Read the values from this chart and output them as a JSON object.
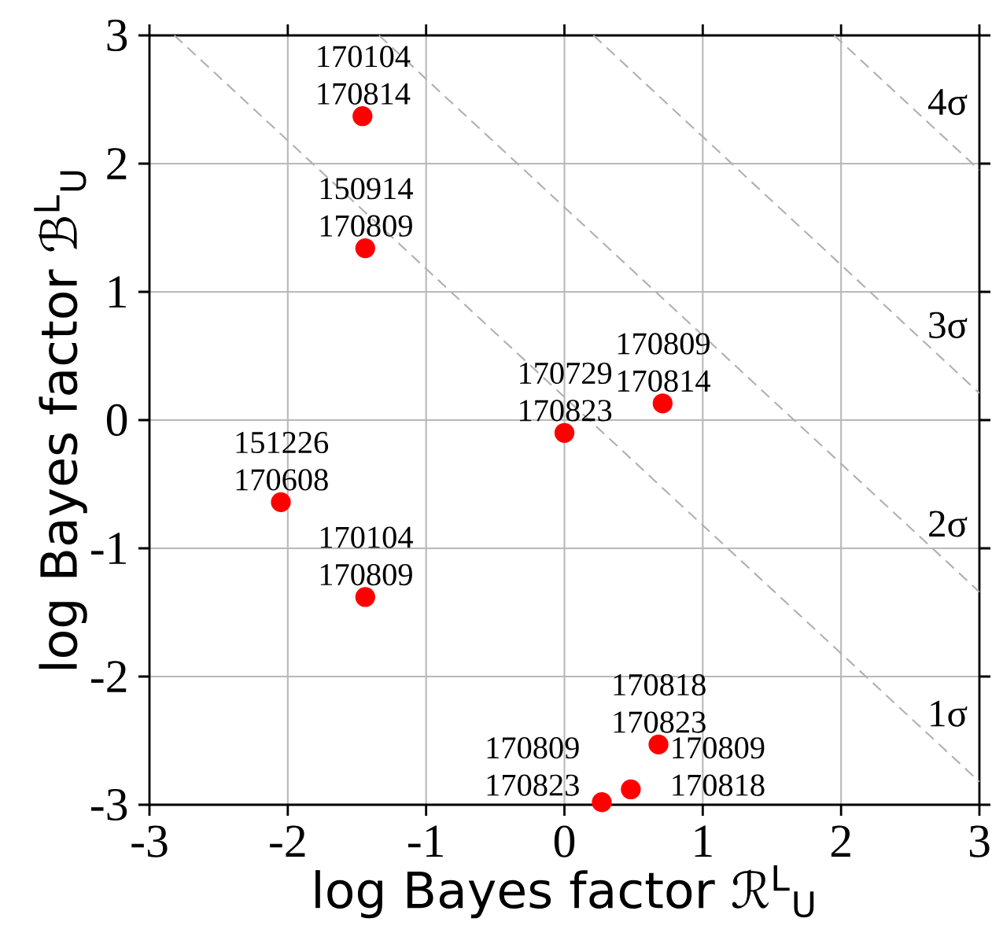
{
  "chart_data": {
    "type": "scatter",
    "xlabel": "log Bayes factor ℛ$^{L}$$_{U}$",
    "ylabel": "log Bayes factor ℬ$^{L}$$_{U}$",
    "xlim": [
      -3,
      3
    ],
    "ylim": [
      -3,
      3
    ],
    "xticks": [
      -3,
      -2,
      -1,
      0,
      1,
      2,
      3
    ],
    "yticks": [
      -3,
      -2,
      -1,
      0,
      1,
      2,
      3
    ],
    "grid": true,
    "series": [
      {
        "marker": "circle",
        "color": "#ff0000",
        "x": [
          -1.46,
          -1.44,
          -2.05,
          -1.44,
          0.0,
          0.71,
          0.68,
          0.27,
          0.48
        ],
        "values": [
          2.37,
          1.34,
          -0.64,
          -1.38,
          -0.1,
          0.13,
          -2.53,
          -2.98,
          -2.88
        ]
      },
      {
        "type": "line",
        "name": "1σ",
        "marker": "none",
        "color": "#b0b0b0",
        "line_style": "dashed",
        "x": [
          -2.82,
          3
        ],
        "values": [
          3,
          -2.82
        ]
      },
      {
        "type": "line",
        "name": "2σ",
        "marker": "none",
        "color": "#b0b0b0",
        "line_style": "dashed",
        "x": [
          -1.34,
          3
        ],
        "values": [
          3,
          -1.34
        ]
      },
      {
        "type": "line",
        "name": "3σ",
        "marker": "none",
        "color": "#b0b0b0",
        "line_style": "dashed",
        "x": [
          0.21,
          3
        ],
        "values": [
          3,
          0.21
        ]
      },
      {
        "type": "line",
        "name": "4σ",
        "marker": "none",
        "color": "#b0b0b0",
        "line_style": "dashed",
        "x": [
          1.95,
          3
        ],
        "values": [
          3,
          1.95
        ]
      }
    ],
    "annotations": [
      {
        "text": "170104 170814",
        "x": -1.46,
        "y": 2.37
      },
      {
        "text": "150914 170809",
        "x": -1.44,
        "y": 1.34
      },
      {
        "text": "151226 170608",
        "x": -2.05,
        "y": -0.64
      },
      {
        "text": "170104 170809",
        "x": -1.44,
        "y": -1.38
      },
      {
        "text": "170729 170823",
        "x": 0.0,
        "y": -0.1
      },
      {
        "text": "170809 170814",
        "x": 0.71,
        "y": 0.13
      },
      {
        "text": "170818 170823",
        "x": 0.68,
        "y": -2.53
      },
      {
        "text": "170809 170823",
        "x": 0.27,
        "y": -2.98
      },
      {
        "text": "170809 170818",
        "x": 0.48,
        "y": -2.88
      }
    ]
  }
}
